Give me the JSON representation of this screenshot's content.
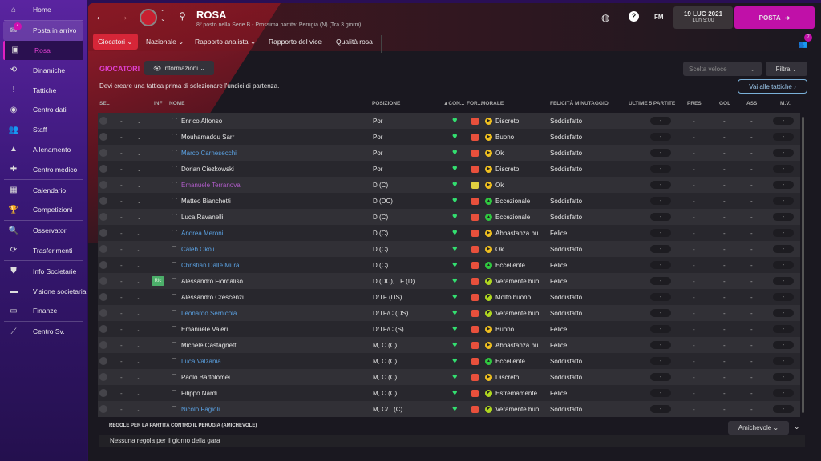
{
  "sidebar": {
    "items": [
      {
        "label": "Home",
        "icon": "home-icon",
        "glyph": "⌂"
      },
      {
        "label": "Posta in arrivo",
        "icon": "inbox-icon",
        "glyph": "✉",
        "badge": "4"
      },
      {
        "label": "Rosa",
        "icon": "shirt-icon",
        "glyph": "▣",
        "active": true
      },
      {
        "label": "Dinamiche",
        "icon": "dynamics-icon",
        "glyph": "⟲"
      },
      {
        "label": "Tattiche",
        "icon": "tactics-icon",
        "glyph": "!"
      },
      {
        "label": "Centro dati",
        "icon": "data-centre-icon",
        "glyph": "◉"
      },
      {
        "label": "Staff",
        "icon": "staff-icon",
        "glyph": "👥"
      },
      {
        "label": "Allenamento",
        "icon": "training-icon",
        "glyph": "▲"
      },
      {
        "label": "Centro medico",
        "icon": "medical-icon",
        "glyph": "✚"
      },
      {
        "label": "Calendario",
        "icon": "calendar-icon",
        "glyph": "▦"
      },
      {
        "label": "Competizioni",
        "icon": "trophy-icon",
        "glyph": "🏆"
      },
      {
        "label": "Osservatori",
        "icon": "search-icon",
        "glyph": "🔍"
      },
      {
        "label": "Trasferimenti",
        "icon": "transfer-icon",
        "glyph": "⟳"
      },
      {
        "label": "Info Societarie",
        "icon": "shield-icon",
        "glyph": "⛊"
      },
      {
        "label": "Visione societaria",
        "icon": "briefcase-icon",
        "glyph": "▬"
      },
      {
        "label": "Finanze",
        "icon": "finance-icon",
        "glyph": "▭"
      },
      {
        "label": "Centro Sv.",
        "icon": "development-icon",
        "glyph": "⟋"
      }
    ]
  },
  "header": {
    "title": "ROSA",
    "subtitle": "8º posto nella Serie B - Prossima partita: Perugia (N) (Tra 3 giorni)",
    "fm": "FM",
    "date": "19 LUG 2021",
    "time": "Lun 9:00",
    "continue": "POSTA",
    "notif_count": "7",
    "accent": "#c010a8"
  },
  "tabs": [
    {
      "label": "Giocatori ⌄",
      "active": true
    },
    {
      "label": "Nazionale ⌄"
    },
    {
      "label": "Rapporto analista ⌄"
    },
    {
      "label": "Rapporto del vice"
    },
    {
      "label": "Qualità rosa"
    }
  ],
  "section": {
    "title": "GIOCATORI",
    "view": "Informazioni",
    "quick_pick_placeholder": "Scelta veloce",
    "filter": "Filtra",
    "notice": "Devi creare una tattica prima di selezionare l'undici di partenza.",
    "tactics_button": "Vai alle tattiche"
  },
  "columns": {
    "sel": "SEL",
    "inf": "INF",
    "name": "NOME",
    "position": "POSIZIONE",
    "condition": "▲CON...",
    "form": "FOR...",
    "morale": "MORALE",
    "happiness": "FELICITÀ MINUTAGGIO",
    "last5": "ULTIME 5 PARTITE",
    "apps": "PRES",
    "goals": "GOL",
    "assists": "ASS",
    "rating": "M.V."
  },
  "players": [
    {
      "name": "Enrico Alfonso",
      "pos": "Por",
      "morale": "Discreto",
      "mlevel": "ok",
      "happy": "Soddisfatto",
      "color": "#e6e6e6",
      "form": "red"
    },
    {
      "name": "Mouhamadou Sarr",
      "pos": "Por",
      "morale": "Buono",
      "mlevel": "ok",
      "happy": "Soddisfatto",
      "color": "#e6e6e6",
      "form": "red"
    },
    {
      "name": "Marco Carnesecchi",
      "pos": "Por",
      "morale": "Ok",
      "mlevel": "ok",
      "happy": "Soddisfatto",
      "color": "#5aa0e0",
      "form": "red"
    },
    {
      "name": "Dorian Ciezkowski",
      "pos": "Por",
      "morale": "Discreto",
      "mlevel": "ok",
      "happy": "Soddisfatto",
      "color": "#e6e6e6",
      "form": "red"
    },
    {
      "name": "Emanuele Terranova",
      "pos": "D (C)",
      "morale": "Ok",
      "mlevel": "ok",
      "happy": "",
      "color": "#b05cc8",
      "form": "yellow"
    },
    {
      "name": "Matteo Bianchetti",
      "pos": "D (DC)",
      "morale": "Eccezionale",
      "mlevel": "top",
      "happy": "Soddisfatto",
      "color": "#e6e6e6",
      "form": "red"
    },
    {
      "name": "Luca Ravanelli",
      "pos": "D (C)",
      "morale": "Eccezionale",
      "mlevel": "top",
      "happy": "Soddisfatto",
      "color": "#e6e6e6",
      "form": "red"
    },
    {
      "name": "Andrea Meroni",
      "pos": "D (C)",
      "morale": "Abbastanza bu...",
      "mlevel": "ok",
      "happy": "Felice",
      "color": "#5aa0e0",
      "form": "red"
    },
    {
      "name": "Caleb Okoli",
      "pos": "D (C)",
      "morale": "Ok",
      "mlevel": "ok",
      "happy": "Soddisfatto",
      "color": "#5aa0e0",
      "form": "red"
    },
    {
      "name": "Christian Dalle Mura",
      "pos": "D (C)",
      "morale": "Eccellente",
      "mlevel": "top",
      "happy": "Felice",
      "color": "#5aa0e0",
      "form": "red"
    },
    {
      "name": "Alessandro Fiordaliso",
      "pos": "D (DC), TF (D)",
      "morale": "Veramente buo...",
      "mlevel": "good",
      "happy": "Felice",
      "color": "#e6e6e6",
      "form": "red",
      "inf": "Ric"
    },
    {
      "name": "Alessandro Crescenzi",
      "pos": "D/TF (DS)",
      "morale": "Molto buono",
      "mlevel": "good",
      "happy": "Soddisfatto",
      "color": "#e6e6e6",
      "form": "red"
    },
    {
      "name": "Leonardo Sernicola",
      "pos": "D/TF/C (DS)",
      "morale": "Veramente buo...",
      "mlevel": "good",
      "happy": "Soddisfatto",
      "color": "#5aa0e0",
      "form": "red"
    },
    {
      "name": "Emanuele Valeri",
      "pos": "D/TF/C (S)",
      "morale": "Buono",
      "mlevel": "ok",
      "happy": "Felice",
      "color": "#e6e6e6",
      "form": "red"
    },
    {
      "name": "Michele Castagnetti",
      "pos": "M, C (C)",
      "morale": "Abbastanza bu...",
      "mlevel": "ok",
      "happy": "Felice",
      "color": "#e6e6e6",
      "form": "red"
    },
    {
      "name": "Luca Valzania",
      "pos": "M, C (C)",
      "morale": "Eccellente",
      "mlevel": "top",
      "happy": "Soddisfatto",
      "color": "#5aa0e0",
      "form": "red"
    },
    {
      "name": "Paolo Bartolomei",
      "pos": "M, C (C)",
      "morale": "Discreto",
      "mlevel": "ok",
      "happy": "Soddisfatto",
      "color": "#e6e6e6",
      "form": "red"
    },
    {
      "name": "Filippo Nardi",
      "pos": "M, C (C)",
      "morale": "Estremamente...",
      "mlevel": "good",
      "happy": "Felice",
      "color": "#e6e6e6",
      "form": "red"
    },
    {
      "name": "Nicolò Fagioli",
      "pos": "M, C/T (C)",
      "morale": "Veramente buo...",
      "mlevel": "good",
      "happy": "Soddisfatto",
      "color": "#5aa0e0",
      "form": "red"
    }
  ],
  "empty": "-",
  "rules": {
    "title": "REGOLE PER LA PARTITA CONTRO IL PERUGIA (AMICHEVOLE)",
    "text": "Nessuna regola per il giorno della gara",
    "type": "Amichevole"
  }
}
